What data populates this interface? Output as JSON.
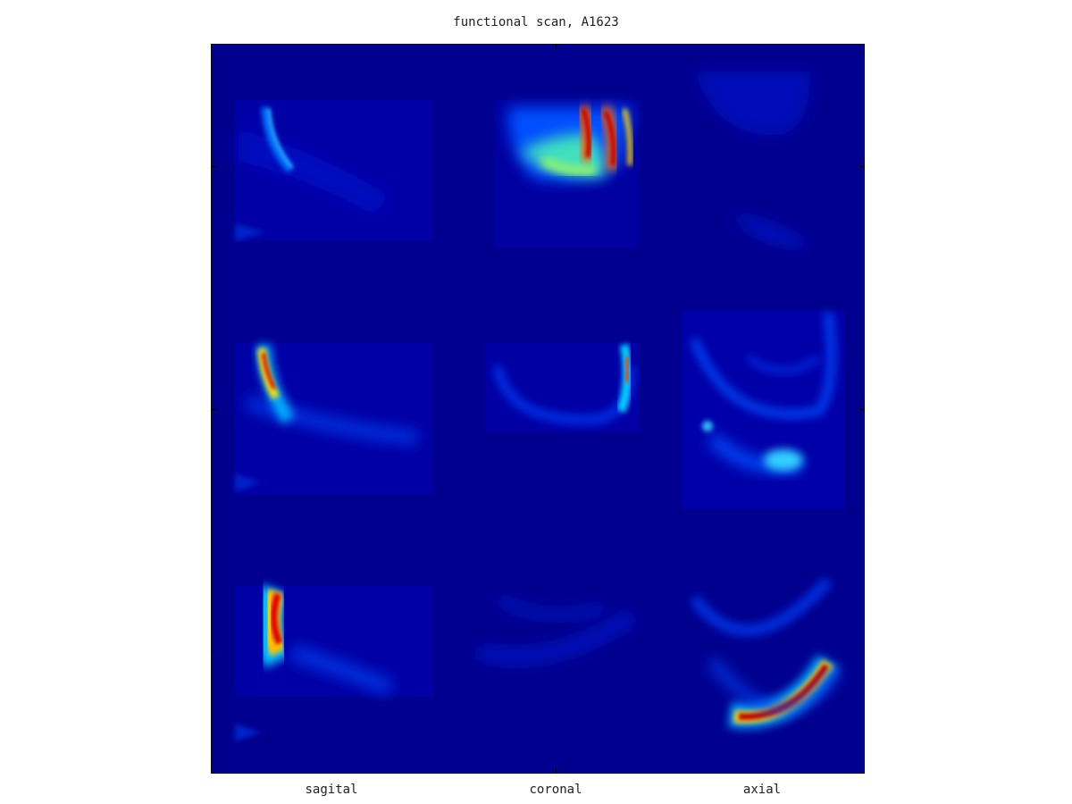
{
  "figure": {
    "title": "functional scan, A1623",
    "columns": [
      "sagital",
      "coronal",
      "axial"
    ],
    "colormap": "jet",
    "background_color": "#00008f"
  }
}
